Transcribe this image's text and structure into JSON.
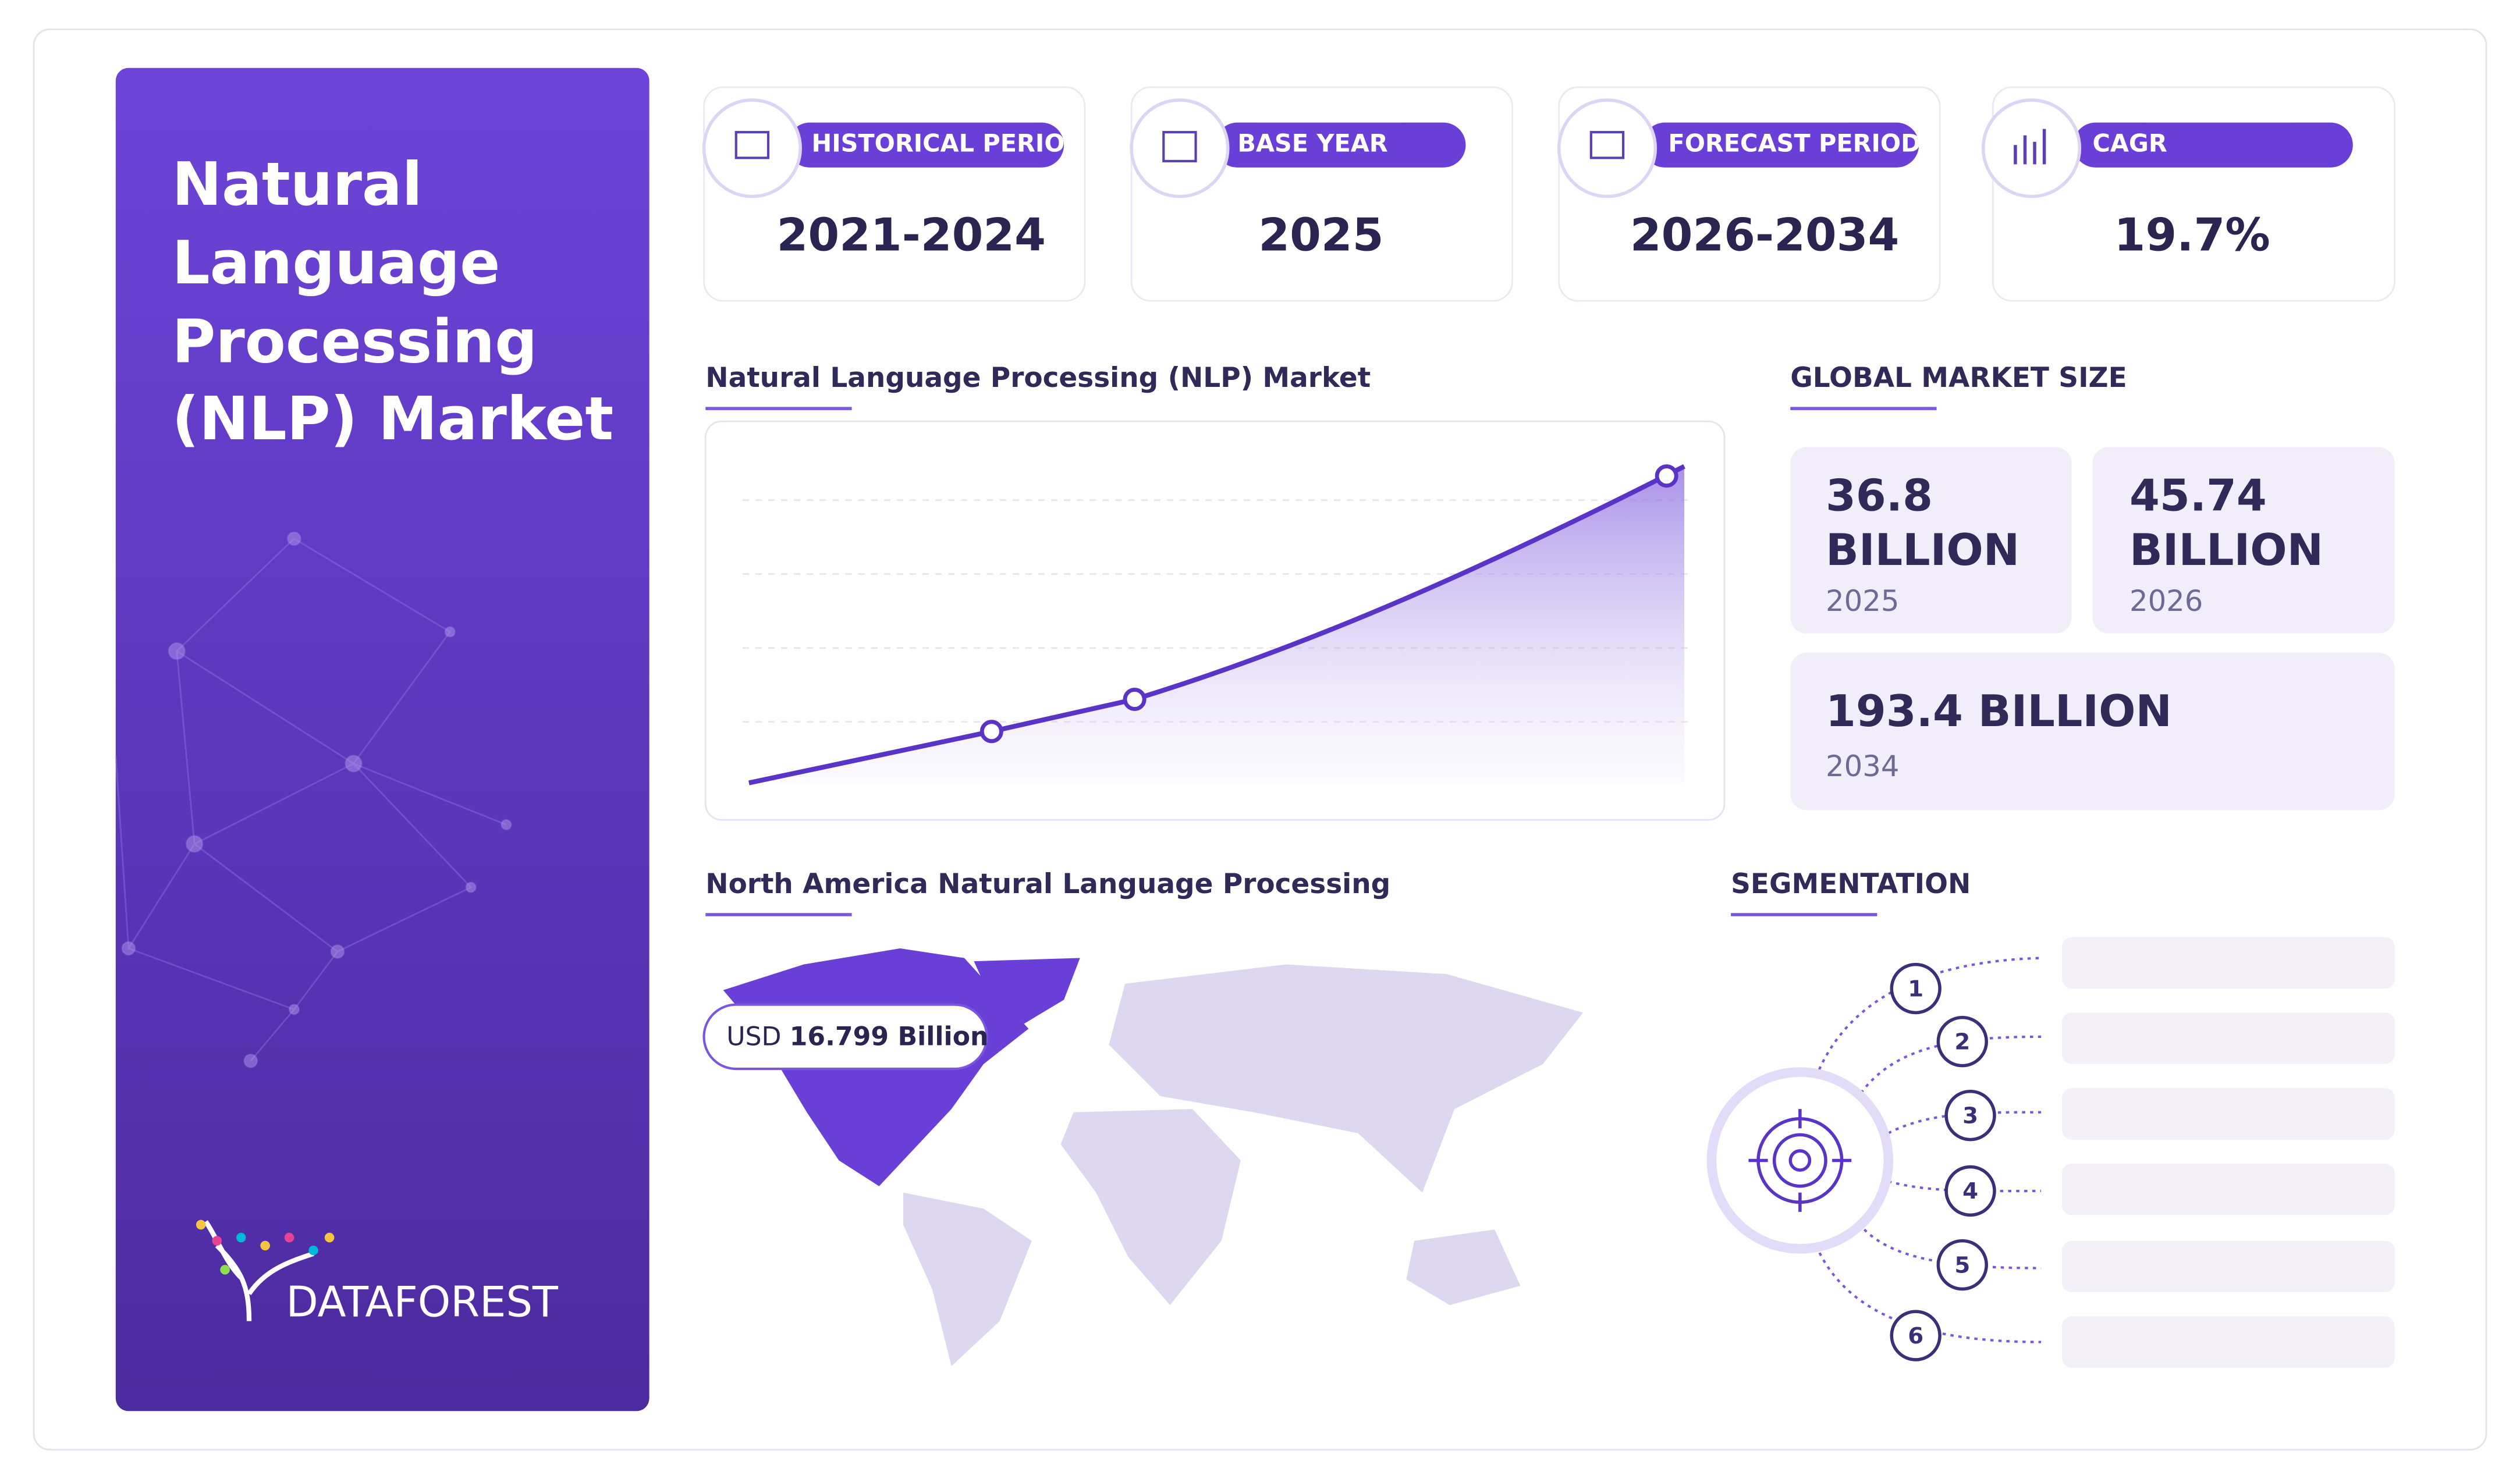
{
  "header": {
    "title": [
      "Natural",
      "Language",
      "Processing",
      "(NLP) Market"
    ],
    "logo": "DATAFOREST"
  },
  "stats": [
    {
      "label": "HISTORICAL PERIOD",
      "value": "2021-2024"
    },
    {
      "label": "BASE YEAR",
      "value": "2025"
    },
    {
      "label": "FORECAST PERIOD",
      "value": "2026-2034"
    },
    {
      "label": "CAGR",
      "value": "19.7%"
    }
  ],
  "chart": {
    "title": "Natural Language Processing (NLP) Market"
  },
  "market_size": {
    "title": "GLOBAL MARKET SIZE",
    "cards": [
      {
        "value": "36.8",
        "unit": "BILLION",
        "year": "2025"
      },
      {
        "value": "45.74",
        "unit": "BILLION",
        "year": "2026"
      },
      {
        "value": "193.4",
        "unit": "BILLION",
        "year": "2034"
      }
    ]
  },
  "map": {
    "title": "North America Natural Language Processing",
    "callout_prefix": "USD",
    "callout_value": "16.799 Billion"
  },
  "segmentation": {
    "title": "SEGMENTATION",
    "items": [
      "1",
      "2",
      "3",
      "4",
      "5",
      "6"
    ]
  }
}
